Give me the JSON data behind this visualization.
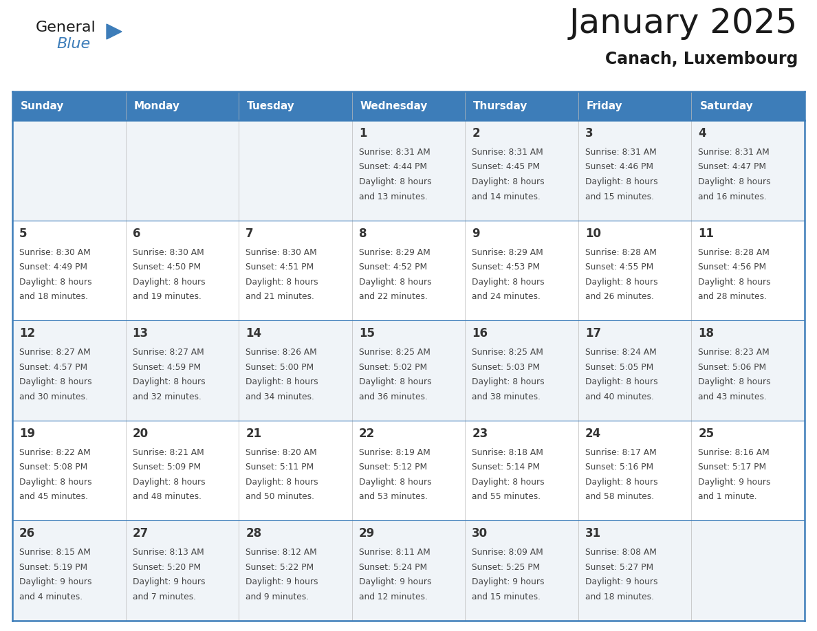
{
  "title": "January 2025",
  "subtitle": "Canach, Luxembourg",
  "header_bg": "#3d7db9",
  "header_text": "#ffffff",
  "row_bg_odd": "#f0f4f8",
  "row_bg_even": "#ffffff",
  "border_color": "#3d7db9",
  "day_headers": [
    "Sunday",
    "Monday",
    "Tuesday",
    "Wednesday",
    "Thursday",
    "Friday",
    "Saturday"
  ],
  "calendar_data": [
    [
      "",
      "",
      "",
      "1\nSunrise: 8:31 AM\nSunset: 4:44 PM\nDaylight: 8 hours\nand 13 minutes.",
      "2\nSunrise: 8:31 AM\nSunset: 4:45 PM\nDaylight: 8 hours\nand 14 minutes.",
      "3\nSunrise: 8:31 AM\nSunset: 4:46 PM\nDaylight: 8 hours\nand 15 minutes.",
      "4\nSunrise: 8:31 AM\nSunset: 4:47 PM\nDaylight: 8 hours\nand 16 minutes."
    ],
    [
      "5\nSunrise: 8:30 AM\nSunset: 4:49 PM\nDaylight: 8 hours\nand 18 minutes.",
      "6\nSunrise: 8:30 AM\nSunset: 4:50 PM\nDaylight: 8 hours\nand 19 minutes.",
      "7\nSunrise: 8:30 AM\nSunset: 4:51 PM\nDaylight: 8 hours\nand 21 minutes.",
      "8\nSunrise: 8:29 AM\nSunset: 4:52 PM\nDaylight: 8 hours\nand 22 minutes.",
      "9\nSunrise: 8:29 AM\nSunset: 4:53 PM\nDaylight: 8 hours\nand 24 minutes.",
      "10\nSunrise: 8:28 AM\nSunset: 4:55 PM\nDaylight: 8 hours\nand 26 minutes.",
      "11\nSunrise: 8:28 AM\nSunset: 4:56 PM\nDaylight: 8 hours\nand 28 minutes."
    ],
    [
      "12\nSunrise: 8:27 AM\nSunset: 4:57 PM\nDaylight: 8 hours\nand 30 minutes.",
      "13\nSunrise: 8:27 AM\nSunset: 4:59 PM\nDaylight: 8 hours\nand 32 minutes.",
      "14\nSunrise: 8:26 AM\nSunset: 5:00 PM\nDaylight: 8 hours\nand 34 minutes.",
      "15\nSunrise: 8:25 AM\nSunset: 5:02 PM\nDaylight: 8 hours\nand 36 minutes.",
      "16\nSunrise: 8:25 AM\nSunset: 5:03 PM\nDaylight: 8 hours\nand 38 minutes.",
      "17\nSunrise: 8:24 AM\nSunset: 5:05 PM\nDaylight: 8 hours\nand 40 minutes.",
      "18\nSunrise: 8:23 AM\nSunset: 5:06 PM\nDaylight: 8 hours\nand 43 minutes."
    ],
    [
      "19\nSunrise: 8:22 AM\nSunset: 5:08 PM\nDaylight: 8 hours\nand 45 minutes.",
      "20\nSunrise: 8:21 AM\nSunset: 5:09 PM\nDaylight: 8 hours\nand 48 minutes.",
      "21\nSunrise: 8:20 AM\nSunset: 5:11 PM\nDaylight: 8 hours\nand 50 minutes.",
      "22\nSunrise: 8:19 AM\nSunset: 5:12 PM\nDaylight: 8 hours\nand 53 minutes.",
      "23\nSunrise: 8:18 AM\nSunset: 5:14 PM\nDaylight: 8 hours\nand 55 minutes.",
      "24\nSunrise: 8:17 AM\nSunset: 5:16 PM\nDaylight: 8 hours\nand 58 minutes.",
      "25\nSunrise: 8:16 AM\nSunset: 5:17 PM\nDaylight: 9 hours\nand 1 minute."
    ],
    [
      "26\nSunrise: 8:15 AM\nSunset: 5:19 PM\nDaylight: 9 hours\nand 4 minutes.",
      "27\nSunrise: 8:13 AM\nSunset: 5:20 PM\nDaylight: 9 hours\nand 7 minutes.",
      "28\nSunrise: 8:12 AM\nSunset: 5:22 PM\nDaylight: 9 hours\nand 9 minutes.",
      "29\nSunrise: 8:11 AM\nSunset: 5:24 PM\nDaylight: 9 hours\nand 12 minutes.",
      "30\nSunrise: 8:09 AM\nSunset: 5:25 PM\nDaylight: 9 hours\nand 15 minutes.",
      "31\nSunrise: 8:08 AM\nSunset: 5:27 PM\nDaylight: 9 hours\nand 18 minutes.",
      ""
    ]
  ],
  "logo_color_general": "#1a1a1a",
  "logo_color_blue": "#3d7db9",
  "title_color": "#1a1a1a",
  "subtitle_color": "#1a1a1a",
  "cell_text_color": "#444444",
  "day_num_color": "#333333",
  "title_fontsize": 36,
  "subtitle_fontsize": 17,
  "header_fontsize": 11,
  "daynum_fontsize": 12,
  "cell_fontsize": 8.8,
  "logo_general_fontsize": 16,
  "logo_blue_fontsize": 16
}
